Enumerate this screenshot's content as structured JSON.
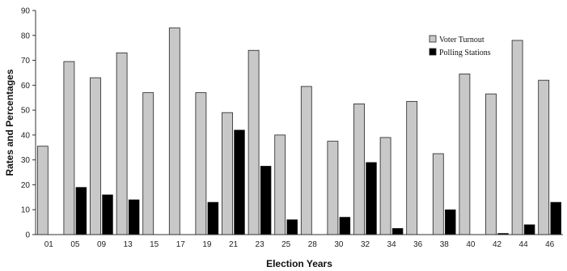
{
  "chart_data": {
    "type": "bar",
    "title": "",
    "xlabel": "Election Years",
    "ylabel": "Rates and Percentages",
    "ylim": [
      0,
      90
    ],
    "yticks": [
      0,
      10,
      20,
      30,
      40,
      50,
      60,
      70,
      80,
      90
    ],
    "grid": false,
    "legend_position": "top-right",
    "categories": [
      "01",
      "05",
      "09",
      "13",
      "15",
      "17",
      "19",
      "21",
      "23",
      "25",
      "28",
      "30",
      "32",
      "34",
      "36",
      "38",
      "40",
      "42",
      "44",
      "46"
    ],
    "series": [
      {
        "name": "Voter Turnout",
        "color": "#c8c8c8",
        "values": [
          35.5,
          69.5,
          63,
          73,
          57,
          83,
          57,
          49,
          74,
          40,
          59.5,
          37.5,
          52.5,
          39,
          53.5,
          32.5,
          64.5,
          56.5,
          78,
          62
        ]
      },
      {
        "name": "Polling Stations",
        "color": "#000000",
        "values": [
          0,
          19,
          16,
          14,
          0,
          0,
          13,
          42,
          27.5,
          6,
          0,
          7,
          29,
          2.5,
          0,
          10,
          0,
          0.5,
          4,
          13
        ]
      }
    ]
  }
}
